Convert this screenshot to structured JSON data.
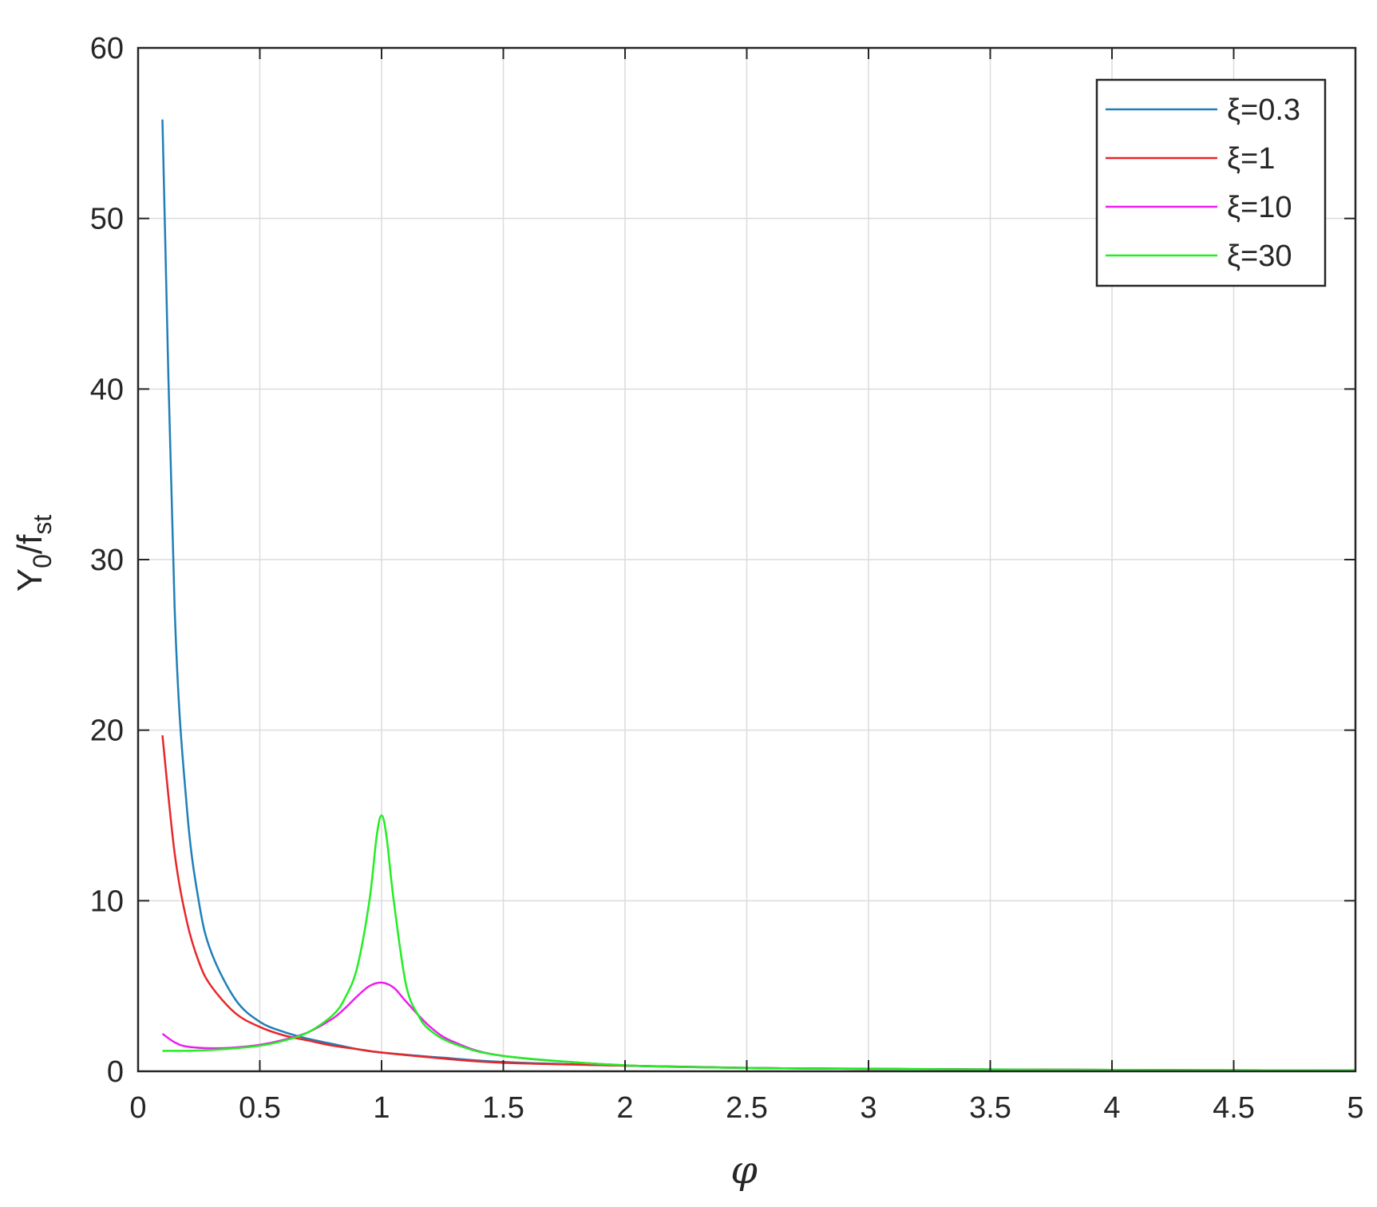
{
  "chart_data": {
    "type": "line",
    "xlabel": "φ",
    "ylabel": {
      "main": "Y",
      "sub1": "0",
      "mid": "/f",
      "sub2": "st"
    },
    "xlim": [
      0,
      5
    ],
    "ylim": [
      0,
      60
    ],
    "xticks": [
      0,
      0.5,
      1,
      1.5,
      2,
      2.5,
      3,
      3.5,
      4,
      4.5,
      5
    ],
    "xtick_labels": [
      "0",
      "0.5",
      "1",
      "1.5",
      "2",
      "2.5",
      "3",
      "3.5",
      "4",
      "4.5",
      "5"
    ],
    "yticks": [
      0,
      10,
      20,
      30,
      40,
      50,
      60
    ],
    "ytick_labels": [
      "0",
      "10",
      "20",
      "30",
      "40",
      "50",
      "60"
    ],
    "grid": true,
    "legend_position": "top-right",
    "series": [
      {
        "name": "ξ=0.3",
        "xi": 0.3,
        "color": "#1f7fb8",
        "x": [
          0.1,
          0.15,
          0.2,
          0.25,
          0.3,
          0.4,
          0.5,
          0.6,
          0.7,
          0.8,
          0.9,
          1.0,
          1.25,
          1.5,
          2.0,
          2.5,
          3.0,
          4.0,
          5.0
        ],
        "values": [
          55.8,
          27.2,
          15.5,
          9.9,
          7.0,
          4.2,
          2.9,
          2.3,
          1.9,
          1.6,
          1.3,
          1.1,
          0.8,
          0.55,
          0.33,
          0.2,
          0.15,
          0.08,
          0.05
        ]
      },
      {
        "name": "ξ=1",
        "xi": 1,
        "color": "#e8262a",
        "x": [
          0.1,
          0.15,
          0.2,
          0.25,
          0.3,
          0.4,
          0.5,
          0.6,
          0.7,
          0.8,
          0.9,
          1.0,
          1.25,
          1.5,
          2.0,
          2.5,
          3.0,
          4.0,
          5.0
        ],
        "values": [
          19.7,
          12.8,
          8.8,
          6.4,
          5.0,
          3.4,
          2.6,
          2.1,
          1.8,
          1.5,
          1.3,
          1.1,
          0.75,
          0.5,
          0.33,
          0.2,
          0.14,
          0.08,
          0.05
        ]
      },
      {
        "name": "ξ=10",
        "xi": 10,
        "color": "#ee1cee",
        "x": [
          0.1,
          0.15,
          0.2,
          0.3,
          0.4,
          0.5,
          0.6,
          0.7,
          0.8,
          0.85,
          0.9,
          0.95,
          1.0,
          1.05,
          1.1,
          1.2,
          1.3,
          1.5,
          2.0,
          2.5,
          3.0,
          4.0,
          5.0
        ],
        "values": [
          2.2,
          1.7,
          1.45,
          1.35,
          1.4,
          1.55,
          1.85,
          2.3,
          3.1,
          3.7,
          4.4,
          5.0,
          5.2,
          4.9,
          4.1,
          2.6,
          1.7,
          0.9,
          0.35,
          0.2,
          0.14,
          0.08,
          0.05
        ]
      },
      {
        "name": "ξ=30",
        "xi": 30,
        "color": "#22ee22",
        "x": [
          0.1,
          0.2,
          0.3,
          0.4,
          0.5,
          0.6,
          0.7,
          0.8,
          0.85,
          0.9,
          0.95,
          0.98,
          1.0,
          1.02,
          1.05,
          1.1,
          1.15,
          1.2,
          1.3,
          1.5,
          2.0,
          2.5,
          3.0,
          4.0,
          5.0
        ],
        "values": [
          1.2,
          1.2,
          1.25,
          1.35,
          1.5,
          1.8,
          2.3,
          3.3,
          4.3,
          6.1,
          10.0,
          13.8,
          15.0,
          13.8,
          10.0,
          5.1,
          3.3,
          2.4,
          1.6,
          0.9,
          0.35,
          0.2,
          0.14,
          0.08,
          0.05
        ]
      }
    ]
  }
}
